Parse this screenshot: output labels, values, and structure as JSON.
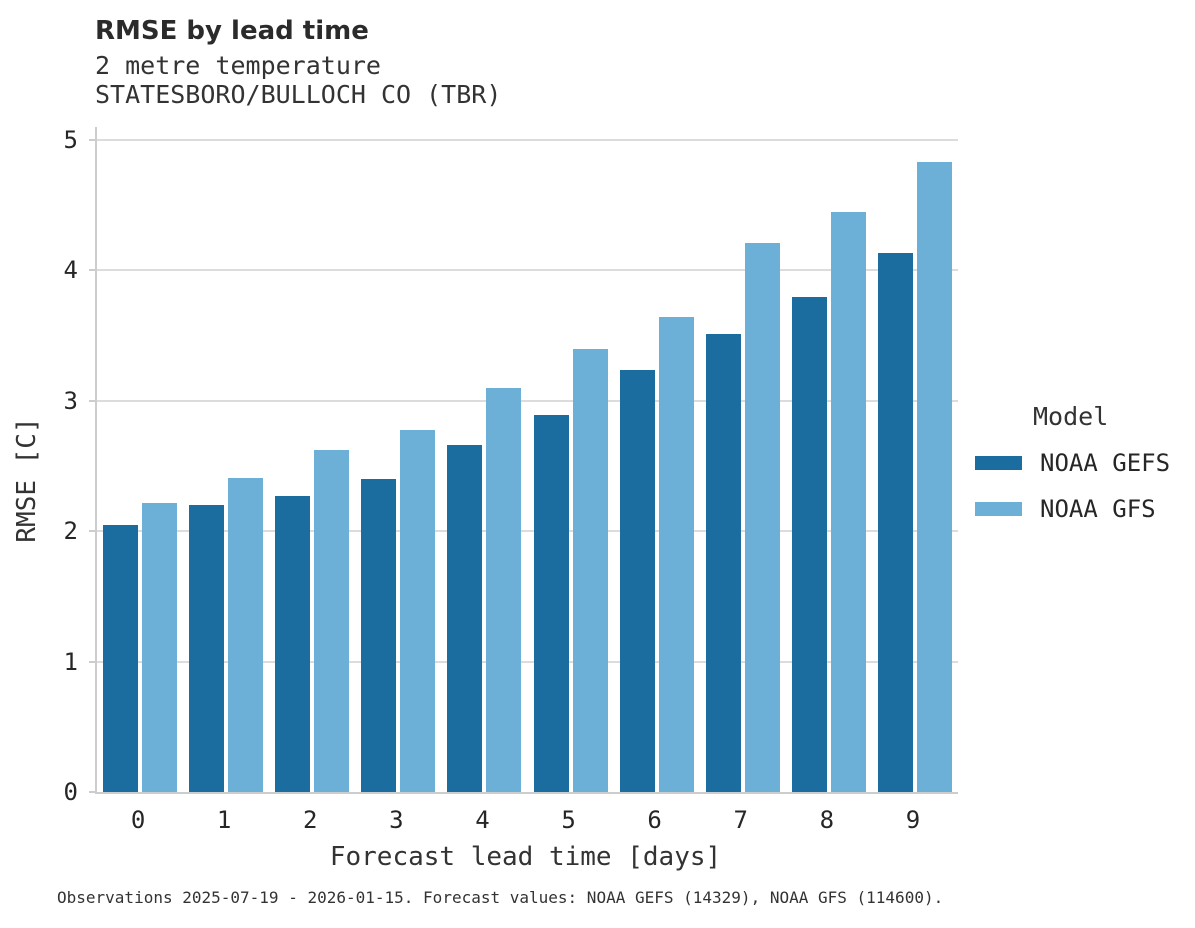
{
  "header": {
    "title": "RMSE by lead time",
    "subtitle1": "2 metre temperature",
    "subtitle2": "STATESBORO/BULLOCH CO (TBR)"
  },
  "legend": {
    "title": "Model"
  },
  "footer": {
    "text": "Observations 2025-07-19 - 2026-01-15. Forecast values: NOAA GEFS (14329), NOAA GFS (114600)."
  },
  "chart_data": {
    "type": "bar",
    "title": "RMSE by lead time",
    "subtitle": [
      "2 metre temperature",
      "STATESBORO/BULLOCH CO (TBR)"
    ],
    "categories": [
      "0",
      "1",
      "2",
      "3",
      "4",
      "5",
      "6",
      "7",
      "8",
      "9"
    ],
    "xlabel": "Forecast lead time [days]",
    "ylabel": "RMSE [C]",
    "ylim": [
      0,
      5.1
    ],
    "yticks": [
      0,
      1,
      2,
      3,
      4,
      5
    ],
    "grid": "horizontal",
    "legend_title": "Model",
    "legend_position": "right",
    "series": [
      {
        "name": "NOAA GEFS",
        "color": "#1a6d9e",
        "values": [
          2.05,
          2.2,
          2.27,
          2.4,
          2.66,
          2.89,
          3.24,
          3.51,
          3.8,
          4.13
        ]
      },
      {
        "name": "NOAA GFS",
        "color": "#6cb0d8",
        "values": [
          2.22,
          2.41,
          2.62,
          2.78,
          3.1,
          3.4,
          3.64,
          4.21,
          4.45,
          4.83
        ]
      }
    ]
  },
  "colors": {
    "gridline": "#dcdcdc",
    "spine": "#cdcdcd",
    "text": "#262626"
  }
}
